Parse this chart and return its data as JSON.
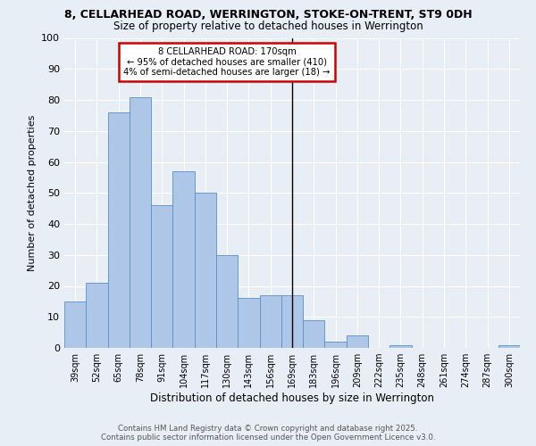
{
  "title1": "8, CELLARHEAD ROAD, WERRINGTON, STOKE-ON-TRENT, ST9 0DH",
  "title2": "Size of property relative to detached houses in Werrington",
  "xlabel": "Distribution of detached houses by size in Werrington",
  "ylabel": "Number of detached properties",
  "bar_labels": [
    "39sqm",
    "52sqm",
    "65sqm",
    "78sqm",
    "91sqm",
    "104sqm",
    "117sqm",
    "130sqm",
    "143sqm",
    "156sqm",
    "169sqm",
    "183sqm",
    "196sqm",
    "209sqm",
    "222sqm",
    "235sqm",
    "248sqm",
    "261sqm",
    "274sqm",
    "287sqm",
    "300sqm"
  ],
  "bar_values": [
    15,
    21,
    76,
    81,
    46,
    57,
    50,
    30,
    16,
    17,
    17,
    9,
    2,
    4,
    0,
    1,
    0,
    0,
    0,
    0,
    1
  ],
  "bar_color": "#aec6e8",
  "bar_edge_color": "#5a8fc3",
  "vline_idx": 10,
  "annotation_text": "8 CELLARHEAD ROAD: 170sqm\n← 95% of detached houses are smaller (410)\n4% of semi-detached houses are larger (18) →",
  "annotation_box_color": "#ffffff",
  "annotation_box_edge_color": "#cc0000",
  "ylim": [
    0,
    100
  ],
  "yticks": [
    0,
    10,
    20,
    30,
    40,
    50,
    60,
    70,
    80,
    90,
    100
  ],
  "background_color": "#e8eef5",
  "grid_color": "#ffffff",
  "footer1": "Contains HM Land Registry data © Crown copyright and database right 2025.",
  "footer2": "Contains public sector information licensed under the Open Government Licence v3.0."
}
